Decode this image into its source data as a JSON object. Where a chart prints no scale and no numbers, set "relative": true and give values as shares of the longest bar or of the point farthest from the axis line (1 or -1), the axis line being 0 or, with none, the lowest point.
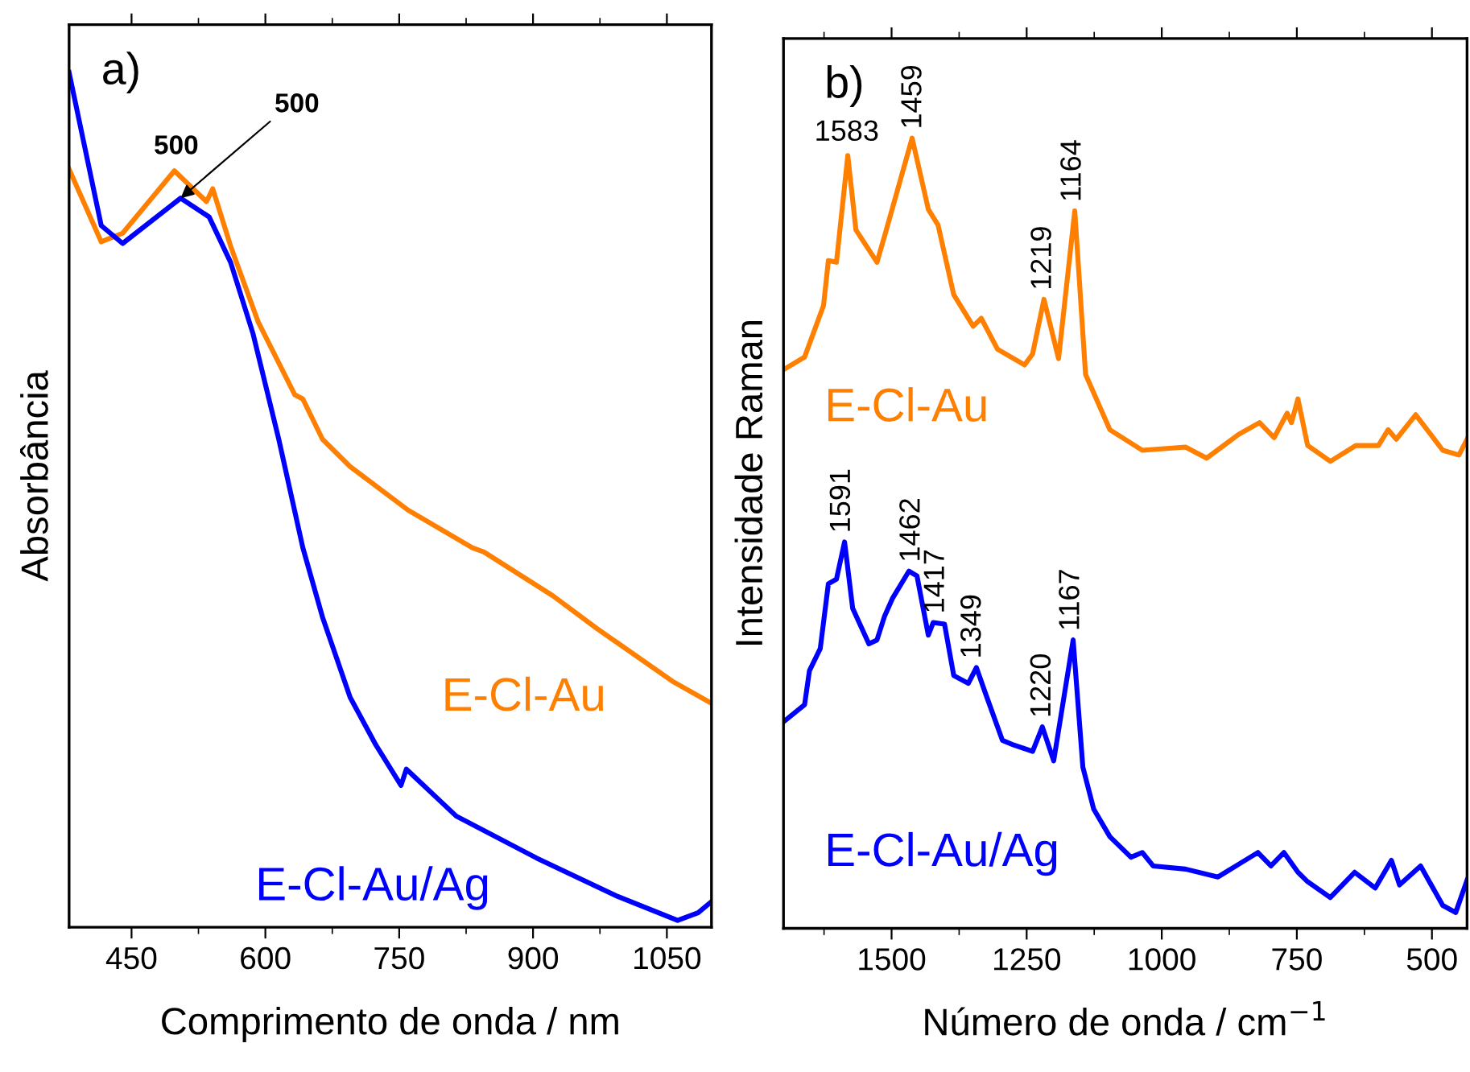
{
  "chart_data": [
    {
      "type": "line",
      "xlabel": "Comprimento de onda / nm",
      "ylabel": "Absorbância",
      "relative": true,
      "xlim": [
        380,
        1100
      ],
      "xticks": [
        450,
        600,
        750,
        900,
        1050
      ],
      "tick_labels": "x",
      "legend": false,
      "grid": false,
      "annotations": [
        "a)",
        {
          "text": "500",
          "x": 500,
          "y": 0.885
        },
        {
          "text": "500",
          "x": 505,
          "y": 0.853
        }
      ],
      "series": [
        {
          "name": "E-Cl-Au",
          "color": "#ff7f00",
          "x": [
            380,
            416,
            440,
            498,
            534,
            541,
            561,
            592,
            633,
            642,
            664,
            695,
            760,
            832,
            845,
            922,
            971,
            1056,
            1100
          ],
          "values": [
            0.887,
            0.802,
            0.812,
            0.885,
            0.849,
            0.864,
            0.797,
            0.708,
            0.623,
            0.618,
            0.571,
            0.539,
            0.488,
            0.444,
            0.439,
            0.388,
            0.35,
            0.288,
            0.262
          ]
        },
        {
          "name": "E-Cl-Au/Ag",
          "color": "#0000ff",
          "x": [
            380,
            416,
            440,
            505,
            537,
            561,
            586,
            615,
            642,
            664,
            695,
            724,
            752,
            758,
            814,
            904,
            995,
            1062,
            1085,
            1100
          ],
          "values": [
            1.0,
            0.821,
            0.8,
            0.853,
            0.831,
            0.778,
            0.695,
            0.571,
            0.444,
            0.363,
            0.269,
            0.213,
            0.166,
            0.185,
            0.13,
            0.081,
            0.036,
            0.008,
            0.017,
            0.03
          ]
        }
      ]
    },
    {
      "type": "line",
      "xlabel": "Número de onda / cm$^{−1}$",
      "ylabel": "Intensidade Raman",
      "relative": true,
      "xlim": [
        1700,
        435
      ],
      "xticks": [
        1500,
        1250,
        1000,
        750,
        500
      ],
      "tick_labels": "x",
      "legend": false,
      "grid": false,
      "annotations": [
        "b)",
        {
          "text": "1583",
          "x": 1583,
          "y": 0.978
        },
        {
          "text": "1459",
          "x": 1459,
          "y": 1.0
        },
        {
          "text": "1219",
          "x": 1219,
          "y": 0.796
        },
        {
          "text": "1164",
          "x": 1164,
          "y": 0.908
        },
        {
          "text": "1591",
          "x": 1591,
          "y": 0.489
        },
        {
          "text": "1462",
          "x": 1462,
          "y": 0.452
        },
        {
          "text": "1417",
          "x": 1417,
          "y": 0.387
        },
        {
          "text": "1349",
          "x": 1349,
          "y": 0.33
        },
        {
          "text": "1220",
          "x": 1220,
          "y": 0.255
        },
        {
          "text": "1167",
          "x": 1167,
          "y": 0.365
        }
      ],
      "series": [
        {
          "name": "E-Cl-Au",
          "color": "#ff7f00",
          "x": [
            1700,
            1661,
            1626,
            1617,
            1602,
            1581,
            1566,
            1527,
            1513,
            1462,
            1432,
            1414,
            1385,
            1349,
            1334,
            1304,
            1254,
            1239,
            1218,
            1191,
            1161,
            1141,
            1096,
            1036,
            956,
            917,
            858,
            819,
            792,
            768,
            760,
            748,
            730,
            688,
            641,
            599,
            581,
            566,
            530,
            480,
            450,
            435
          ],
          "values": [
            0.707,
            0.723,
            0.788,
            0.845,
            0.843,
            0.978,
            0.884,
            0.843,
            0.876,
            1.0,
            0.91,
            0.89,
            0.802,
            0.762,
            0.772,
            0.733,
            0.713,
            0.727,
            0.796,
            0.721,
            0.908,
            0.701,
            0.631,
            0.605,
            0.609,
            0.595,
            0.625,
            0.64,
            0.621,
            0.652,
            0.64,
            0.67,
            0.611,
            0.591,
            0.611,
            0.611,
            0.631,
            0.619,
            0.65,
            0.605,
            0.599,
            0.619
          ]
        },
        {
          "name": "E-Cl-Au/Ag",
          "color": "#0000ff",
          "x": [
            1697,
            1661,
            1652,
            1632,
            1617,
            1602,
            1587,
            1572,
            1542,
            1527,
            1513,
            1498,
            1468,
            1453,
            1432,
            1423,
            1402,
            1385,
            1358,
            1343,
            1325,
            1295,
            1274,
            1239,
            1221,
            1200,
            1164,
            1146,
            1126,
            1096,
            1057,
            1036,
            1016,
            956,
            896,
            858,
            822,
            798,
            774,
            748,
            730,
            688,
            643,
            605,
            575,
            560,
            521,
            480,
            456,
            435
          ],
          "values": [
            0.263,
            0.283,
            0.326,
            0.354,
            0.436,
            0.442,
            0.489,
            0.405,
            0.36,
            0.365,
            0.395,
            0.418,
            0.452,
            0.446,
            0.371,
            0.387,
            0.385,
            0.32,
            0.31,
            0.33,
            0.295,
            0.238,
            0.232,
            0.224,
            0.255,
            0.212,
            0.365,
            0.204,
            0.151,
            0.116,
            0.09,
            0.096,
            0.079,
            0.075,
            0.065,
            0.081,
            0.096,
            0.079,
            0.096,
            0.071,
            0.059,
            0.039,
            0.071,
            0.051,
            0.086,
            0.055,
            0.079,
            0.029,
            0.02,
            0.061
          ]
        }
      ]
    }
  ]
}
